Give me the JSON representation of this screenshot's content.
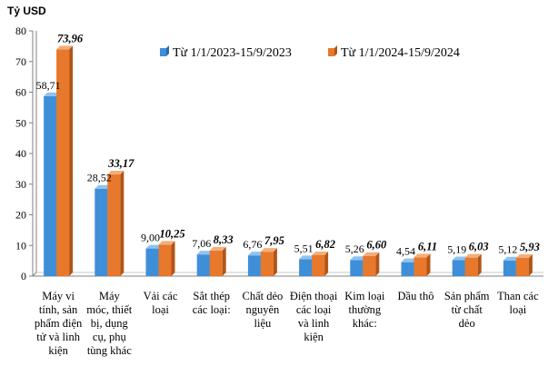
{
  "colors": {
    "series_a_front": "#3f8fd8",
    "series_a_side": "#2a6aa9",
    "series_a_top": "#8fc3f0",
    "series_b_front": "#e7782c",
    "series_b_side": "#b25516",
    "series_b_top": "#f4ae79",
    "axis": "#808080"
  },
  "chart_data": {
    "type": "bar",
    "title": "",
    "ylabel": "Tỷ USD",
    "xlabel": "",
    "ylim": [
      0,
      80
    ],
    "yticks": [
      0,
      10,
      20,
      30,
      40,
      50,
      60,
      70,
      80
    ],
    "legend_position": "top-right",
    "categories": [
      [
        "Máy vi",
        "tính, sản",
        "phẩm điện",
        "tử và linh",
        "kiện"
      ],
      [
        "Máy",
        "móc, thiết",
        "bị, dụng",
        "cụ, phụ",
        "tùng khác"
      ],
      [
        "Vải các",
        "loại"
      ],
      [
        "Sắt thép",
        "các loại:"
      ],
      [
        "Chất dẻo",
        "nguyên",
        "liệu"
      ],
      [
        "Điện thoại",
        "các loại",
        "và linh",
        "kiện"
      ],
      [
        "Kim loại",
        "thường",
        "khác:"
      ],
      [
        "Dầu thô"
      ],
      [
        "Sản phẩm",
        "từ chất",
        "dẻo"
      ],
      [
        "Than các",
        "loại"
      ]
    ],
    "series": [
      {
        "name": "Từ 1/1/2023-15/9/2023",
        "values": [
          58.71,
          28.52,
          9.0,
          7.06,
          6.76,
          5.51,
          5.26,
          4.54,
          5.19,
          5.12
        ],
        "labels": [
          "58,71",
          "28,52",
          "9,00",
          "7,06",
          "6,76",
          "5,51",
          "5,26",
          "4,54",
          "5,19",
          "5,12"
        ]
      },
      {
        "name": "Từ 1/1/2024-15/9/2024",
        "values": [
          73.96,
          33.17,
          10.25,
          8.33,
          7.95,
          6.82,
          6.6,
          6.11,
          6.03,
          5.93
        ],
        "labels": [
          "73,96",
          "33,17",
          "10,25",
          "8,33",
          "7,95",
          "6,82",
          "6,60",
          "6,11",
          "6,03",
          "5,93"
        ]
      }
    ]
  }
}
